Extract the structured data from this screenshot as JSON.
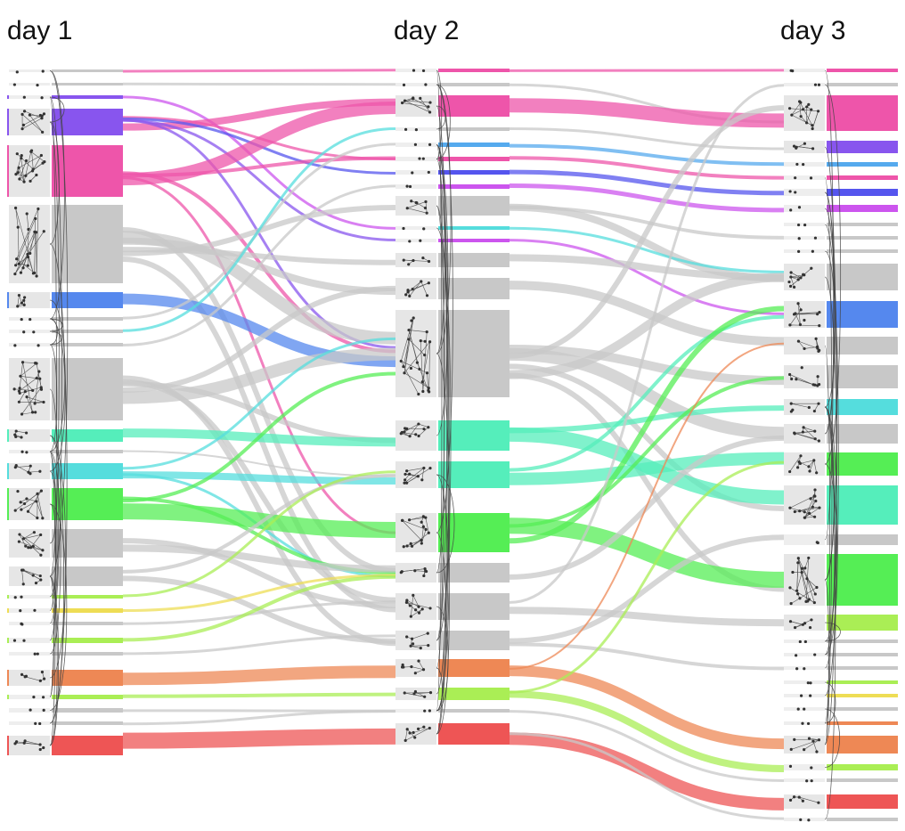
{
  "days": [
    {
      "label": "day 1"
    },
    {
      "label": "day 2"
    },
    {
      "label": "day 3"
    }
  ],
  "colors": {
    "grey": "#c8c8c8",
    "pink": "#ee55aa",
    "purple": "#8855ee",
    "blue": "#5588ee",
    "cyan": "#55dddd",
    "teal": "#55eebb",
    "green": "#55ee55",
    "lime": "#aaee55",
    "yellow": "#eedd55",
    "orange": "#ee8855",
    "red": "#ee5555",
    "violet": "#cc55ee",
    "sky": "#55aaee",
    "indigo": "#5555ee"
  }
}
